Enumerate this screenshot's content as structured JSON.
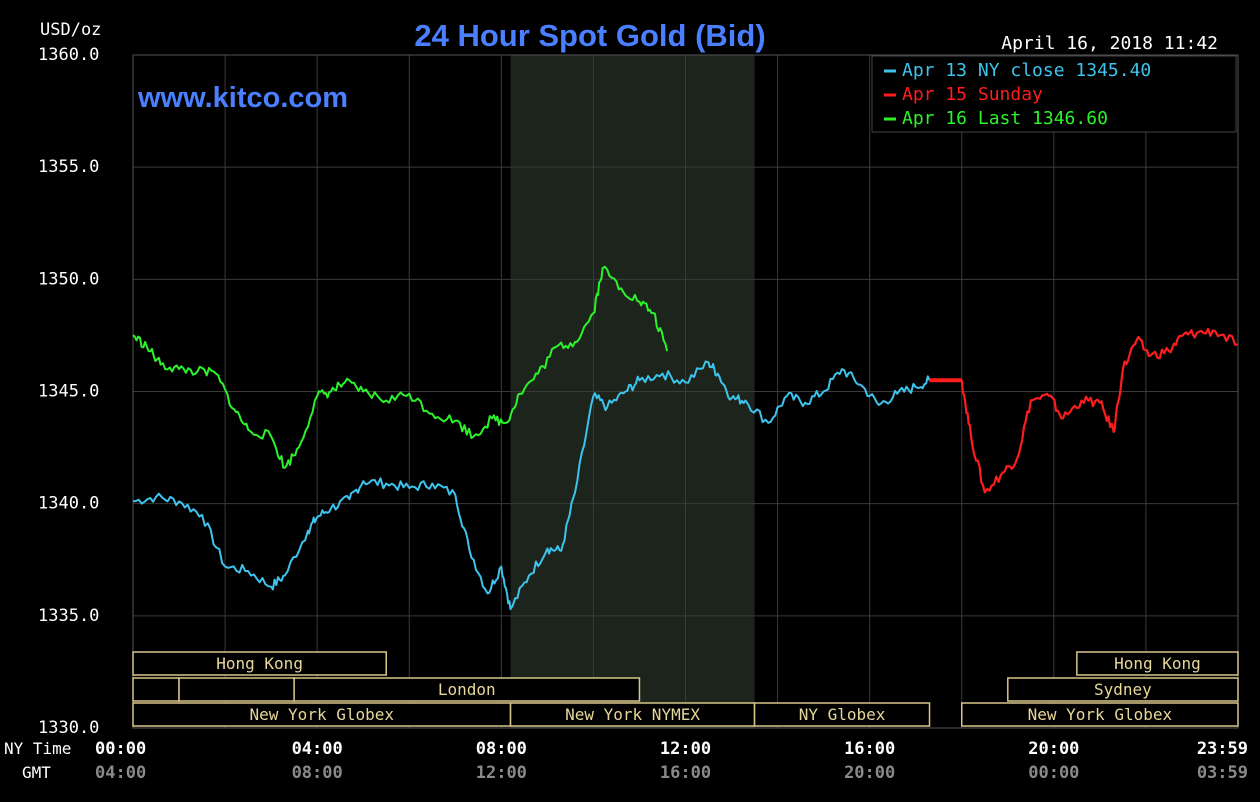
{
  "chart_data": {
    "type": "line",
    "title": "24 Hour Spot Gold (Bid)",
    "watermark": "www.kitco.com",
    "timestamp": "April 16, 2018 11:42",
    "ylabel": "USD/oz",
    "ylim": [
      1330,
      1360
    ],
    "y_ticks": [
      "1360.0",
      "1355.0",
      "1350.0",
      "1345.0",
      "1340.0",
      "1335.0",
      "1330.0"
    ],
    "y_tick_values": [
      1360,
      1355,
      1350,
      1345,
      1340,
      1335,
      1330
    ],
    "xlim": [
      0,
      24
    ],
    "x_row_labels": [
      "NY Time",
      "GMT"
    ],
    "x_ticks": [
      {
        "hour": 0,
        "ny": "00:00",
        "gmt": "04:00"
      },
      {
        "hour": 4,
        "ny": "04:00",
        "gmt": "08:00"
      },
      {
        "hour": 8,
        "ny": "08:00",
        "gmt": "12:00"
      },
      {
        "hour": 12,
        "ny": "12:00",
        "gmt": "16:00"
      },
      {
        "hour": 16,
        "ny": "16:00",
        "gmt": "20:00"
      },
      {
        "hour": 20,
        "ny": "20:00",
        "gmt": "00:00"
      },
      {
        "hour": 24,
        "ny": "23:59",
        "gmt": "03:59"
      }
    ],
    "grid": true,
    "legend_position": "top-right",
    "shaded_range_hours": [
      8.2,
      13.5
    ],
    "series": [
      {
        "name": "Apr 13 NY close 1345.40",
        "color": "#3ec3ec",
        "x": [
          0,
          0.5,
          1,
          1.5,
          2,
          2.5,
          3,
          3.3,
          3.8,
          4,
          4.3,
          4.7,
          5,
          5.5,
          6,
          6.5,
          7,
          7.3,
          7.7,
          8,
          8.2,
          8.6,
          9,
          9.3,
          9.6,
          10,
          10.3,
          10.7,
          11,
          11.5,
          12,
          12.5,
          12.7,
          13,
          13.3,
          13.8,
          14.2,
          14.6,
          15,
          15.4,
          15.8,
          16.2,
          16.6,
          17.0,
          17.3
        ],
        "y": [
          1340.1,
          1340.3,
          1340.1,
          1339.5,
          1337.2,
          1337.0,
          1336.3,
          1336.8,
          1338.8,
          1339.4,
          1339.8,
          1340.2,
          1341.0,
          1340.9,
          1340.7,
          1340.9,
          1340.4,
          1338.0,
          1336.0,
          1337.2,
          1335.3,
          1336.8,
          1338.0,
          1337.9,
          1340.5,
          1344.8,
          1344.3,
          1345.0,
          1345.5,
          1345.8,
          1345.4,
          1346.3,
          1345.8,
          1344.7,
          1344.6,
          1343.6,
          1344.8,
          1344.5,
          1345.0,
          1346.0,
          1345.3,
          1344.4,
          1344.9,
          1345.2,
          1345.5
        ]
      },
      {
        "name": "Apr 15 Sunday",
        "color": "#ff1c1c",
        "x": [
          17.3,
          18.0,
          18.2,
          18.5,
          18.9,
          19.2,
          19.5,
          19.9,
          20.2,
          20.6,
          21.0,
          21.3,
          21.5,
          21.8,
          22.1,
          22.5,
          22.8,
          23.1,
          23.5,
          24
        ],
        "y": [
          1345.5,
          1345.5,
          1343.0,
          1340.5,
          1341.4,
          1342.0,
          1344.6,
          1344.8,
          1343.8,
          1344.6,
          1344.5,
          1343.2,
          1346.0,
          1347.3,
          1346.6,
          1346.8,
          1347.5,
          1347.6,
          1347.7,
          1347.1
        ]
      },
      {
        "name": "Apr 16 Last 1346.60",
        "color": "#2cf22c",
        "x": [
          0,
          0.3,
          0.6,
          1,
          1.4,
          1.8,
          2.2,
          2.5,
          3,
          3.3,
          3.6,
          4,
          4.3,
          4.6,
          5,
          5.5,
          6,
          6.5,
          7,
          7.4,
          7.8,
          8.1,
          8.4,
          8.8,
          9.2,
          9.6,
          10,
          10.2,
          10.6,
          11,
          11.3,
          11.6
        ],
        "y": [
          1347.5,
          1347.0,
          1346.2,
          1346.0,
          1345.9,
          1345.8,
          1344.2,
          1343.3,
          1343.0,
          1341.6,
          1342.5,
          1344.8,
          1345.0,
          1345.4,
          1345.0,
          1344.6,
          1344.9,
          1344.0,
          1343.7,
          1343.0,
          1343.8,
          1343.6,
          1344.9,
          1345.8,
          1347.0,
          1347.2,
          1348.5,
          1350.5,
          1349.6,
          1349.0,
          1348.5,
          1346.8
        ]
      }
    ],
    "sessions": [
      {
        "label": "Hong Kong",
        "row": 0,
        "start": 0,
        "end": 5.5
      },
      {
        "label": "",
        "row": 1,
        "start": 0,
        "end": 1
      },
      {
        "label": "",
        "row": 1,
        "start": 1,
        "end": 3.5
      },
      {
        "label": "London",
        "row": 1,
        "start": 3.5,
        "end": 11
      },
      {
        "label": "New York Globex",
        "row": 2,
        "start": 0,
        "end": 8.2
      },
      {
        "label": "New York NYMEX",
        "row": 2,
        "start": 8.2,
        "end": 13.5
      },
      {
        "label": "NY Globex",
        "row": 2,
        "start": 13.5,
        "end": 17.3
      },
      {
        "label": "Hong Kong",
        "row": 0,
        "start": 20.5,
        "end": 24
      },
      {
        "label": "Sydney",
        "row": 1,
        "start": 19,
        "end": 24
      },
      {
        "label": "New York Globex",
        "row": 2,
        "start": 18.0,
        "end": 24
      }
    ]
  }
}
